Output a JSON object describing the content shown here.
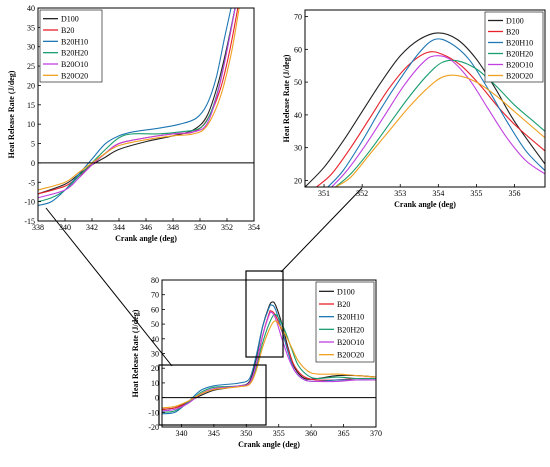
{
  "chart_data": [
    {
      "type": "line",
      "panel": "top-left zoom",
      "xlabel": "Crank angle (deg)",
      "ylabel": "Heat Release Rate (J/deg)",
      "xlim": [
        338,
        354
      ],
      "ylim": [
        -15,
        40
      ],
      "xticks": [
        338,
        340,
        342,
        344,
        346,
        348,
        350,
        352,
        354
      ],
      "yticks": [
        -15,
        -10,
        -5,
        0,
        5,
        10,
        15,
        20,
        25,
        30,
        35,
        40
      ],
      "zero_line": true,
      "legend_position": "top-left",
      "series": [
        {
          "name": "D100",
          "color": "#222222",
          "x": [
            338,
            340,
            341,
            342,
            343,
            344,
            346,
            348,
            349.5,
            350.5,
            351.3,
            352,
            352.6
          ],
          "y": [
            -8,
            -5.5,
            -3,
            -0.5,
            1.5,
            3.5,
            5.5,
            7,
            8.5,
            12,
            20,
            30,
            40
          ]
        },
        {
          "name": "B20",
          "color": "#e8202a",
          "x": [
            338,
            340,
            341,
            342,
            343,
            344,
            346,
            348,
            349.5,
            350.5,
            351.5,
            352.2,
            352.8
          ],
          "y": [
            -8,
            -6,
            -3.5,
            -0.5,
            2.5,
            5,
            6.5,
            7.5,
            8,
            11,
            19,
            29,
            40
          ]
        },
        {
          "name": "B20H10",
          "color": "#1f77b4",
          "x": [
            338,
            339,
            340,
            341,
            342,
            343,
            344,
            345,
            347,
            348.5,
            349.7,
            350.5,
            351.2,
            351.8,
            352.3
          ],
          "y": [
            -11,
            -10,
            -7,
            -3,
            1,
            5,
            7,
            8,
            9,
            10,
            11.5,
            15,
            22,
            32,
            40
          ]
        },
        {
          "name": "B20H20",
          "color": "#1a9e6e",
          "x": [
            338,
            339,
            340,
            341,
            342,
            343,
            344,
            345,
            347,
            348.5,
            350,
            350.8,
            351.5,
            352.1,
            352.6
          ],
          "y": [
            -10,
            -9,
            -7,
            -3.5,
            0,
            3.5,
            6.5,
            7.5,
            7.5,
            8,
            9,
            13,
            21,
            31,
            40
          ]
        },
        {
          "name": "B20O10",
          "color": "#c040e0",
          "x": [
            338,
            340,
            341,
            342,
            343,
            344,
            346,
            348,
            349.5,
            350.5,
            351.3,
            352,
            352.6
          ],
          "y": [
            -9,
            -7,
            -4,
            -0.5,
            2.5,
            5,
            6.5,
            7.5,
            8,
            10,
            18,
            29,
            40
          ]
        },
        {
          "name": "B20O20",
          "color": "#f0a020",
          "x": [
            338,
            340,
            341,
            342,
            343,
            344,
            346,
            348,
            349.5,
            350.5,
            351.5,
            352.3,
            352.9
          ],
          "y": [
            -7,
            -5,
            -2.5,
            0,
            2.5,
            4.5,
            6,
            7,
            7.5,
            9.5,
            17,
            28,
            40
          ]
        }
      ]
    },
    {
      "type": "line",
      "panel": "top-right zoom",
      "xlabel": "Crank angle (deg)",
      "ylabel": "Heat Release Rate (J/deg)",
      "xlim": [
        350.5,
        356.8
      ],
      "ylim": [
        18,
        72
      ],
      "xticks": [
        351,
        352,
        353,
        354,
        355,
        356
      ],
      "yticks": [
        20,
        30,
        40,
        50,
        60,
        70
      ],
      "legend_position": "top-right",
      "series": [
        {
          "name": "D100",
          "color": "#222222",
          "x": [
            350.5,
            351,
            351.5,
            352,
            352.5,
            353,
            353.5,
            354,
            354.5,
            355,
            355.5,
            356,
            356.8
          ],
          "y": [
            18,
            24,
            32,
            41,
            50,
            58,
            63,
            65,
            63,
            57,
            48,
            38,
            25
          ]
        },
        {
          "name": "B20",
          "color": "#e8202a",
          "x": [
            350.8,
            351.2,
            351.7,
            352.2,
            352.7,
            353.2,
            353.7,
            354.1,
            354.6,
            355.1,
            355.6,
            356.1,
            356.8
          ],
          "y": [
            18,
            22,
            30,
            39,
            48,
            55,
            59,
            58.5,
            55,
            49,
            42,
            36,
            29
          ]
        },
        {
          "name": "B20H10",
          "color": "#1f77b4",
          "x": [
            351.1,
            351.5,
            352,
            352.5,
            353,
            353.5,
            353.9,
            354.3,
            354.8,
            355.3,
            355.8,
            356.3,
            356.8
          ],
          "y": [
            18,
            23,
            32,
            42,
            51,
            59,
            63,
            62,
            57,
            48,
            38,
            29,
            23
          ]
        },
        {
          "name": "B20H20",
          "color": "#1a9e6e",
          "x": [
            351.3,
            351.7,
            352.2,
            352.7,
            353.2,
            353.7,
            354.1,
            354.5,
            355,
            355.5,
            356,
            356.5,
            356.8
          ],
          "y": [
            18,
            22,
            29,
            37,
            45,
            52,
            56,
            56.5,
            54,
            49,
            43,
            38,
            35
          ]
        },
        {
          "name": "B20O10",
          "color": "#c040e0",
          "x": [
            351.2,
            351.6,
            352.1,
            352.6,
            353.1,
            353.6,
            353.9,
            354.3,
            354.8,
            355.3,
            355.8,
            356.3,
            356.8
          ],
          "y": [
            18,
            23,
            31,
            40,
            49,
            56,
            58,
            57,
            51,
            42,
            33,
            26,
            22
          ]
        },
        {
          "name": "B20O20",
          "color": "#f0a020",
          "x": [
            351.3,
            351.7,
            352.2,
            352.7,
            353.2,
            353.7,
            354.1,
            354.5,
            355,
            355.5,
            356,
            356.5,
            356.8
          ],
          "y": [
            18,
            21,
            28,
            35,
            42,
            48,
            51.5,
            52,
            50,
            46,
            41,
            36,
            33
          ]
        }
      ]
    },
    {
      "type": "line",
      "panel": "bottom full view",
      "xlabel": "Crank angle (deg)",
      "ylabel": "Heat Release Rate (J/deg)",
      "xlim": [
        337,
        370
      ],
      "ylim": [
        -20,
        80
      ],
      "xticks": [
        340,
        345,
        350,
        355,
        360,
        365,
        370
      ],
      "yticks": [
        -20,
        -10,
        0,
        10,
        20,
        30,
        40,
        50,
        60,
        70,
        80
      ],
      "zero_line": true,
      "legend_position": "top-right",
      "series": [
        {
          "name": "D100",
          "color": "#222222",
          "x": [
            337,
            339,
            341,
            343,
            345,
            347,
            349,
            350.5,
            351.5,
            352.5,
            353.5,
            354,
            354.5,
            355.5,
            356.5,
            357.5,
            359,
            361,
            364,
            367,
            370
          ],
          "y": [
            -8,
            -7,
            -3,
            1.5,
            5,
            6.5,
            8,
            11,
            26,
            48,
            62,
            65,
            63,
            50,
            33,
            20,
            13,
            13,
            15,
            15,
            14
          ]
        },
        {
          "name": "B20",
          "color": "#e8202a",
          "x": [
            337,
            339,
            341,
            343,
            345,
            347,
            349,
            350.5,
            351.5,
            352.5,
            353.5,
            353.8,
            354.5,
            355.5,
            356.5,
            357.5,
            359,
            361,
            364,
            367,
            370
          ],
          "y": [
            -8,
            -7,
            -3.5,
            2.5,
            6,
            7,
            8,
            10,
            22,
            42,
            57,
            59,
            56,
            45,
            32,
            21,
            14,
            12,
            12,
            13,
            13
          ]
        },
        {
          "name": "B20H10",
          "color": "#1f77b4",
          "x": [
            337,
            339,
            341,
            343,
            345,
            347,
            349,
            350.5,
            351.5,
            352.5,
            353.5,
            353.9,
            354.5,
            355.5,
            356.5,
            357.5,
            359,
            361,
            364,
            367,
            370
          ],
          "y": [
            -11,
            -10,
            -3,
            5,
            8,
            9,
            10,
            13,
            28,
            48,
            61,
            63,
            60,
            46,
            30,
            18,
            12,
            11,
            12,
            12,
            12
          ]
        },
        {
          "name": "B20H20",
          "color": "#1a9e6e",
          "x": [
            337,
            339,
            341,
            343,
            345,
            347,
            349,
            350.5,
            351.5,
            352.5,
            353.5,
            354.3,
            355,
            356,
            357,
            358,
            359.5,
            361,
            364,
            367,
            370
          ],
          "y": [
            -10,
            -9,
            -3.5,
            3.5,
            7,
            7.5,
            8,
            10,
            20,
            37,
            50,
            56.5,
            54,
            45,
            33,
            22,
            15,
            13,
            14,
            13,
            13
          ]
        },
        {
          "name": "B20O10",
          "color": "#c040e0",
          "x": [
            337,
            339,
            341,
            343,
            345,
            347,
            349,
            350.5,
            351.5,
            352.5,
            353.5,
            353.9,
            354.5,
            355.5,
            356.5,
            357.5,
            359,
            361,
            364,
            367,
            370
          ],
          "y": [
            -9,
            -8,
            -4,
            2.5,
            6,
            7,
            8,
            10,
            22,
            42,
            56,
            58,
            54,
            40,
            27,
            18,
            12,
            11,
            11,
            12,
            12
          ]
        },
        {
          "name": "B20O20",
          "color": "#f0a020",
          "x": [
            337,
            339,
            341,
            343,
            345,
            347,
            349,
            350.5,
            351.5,
            352.5,
            353.5,
            354.3,
            355,
            356,
            357,
            358,
            359.5,
            361,
            364,
            367,
            370
          ],
          "y": [
            -7,
            -6,
            -2.5,
            2.5,
            5.5,
            6.5,
            7.5,
            9,
            18,
            34,
            46,
            52,
            50,
            43,
            34,
            25,
            18,
            16,
            16,
            15,
            14
          ]
        }
      ]
    }
  ]
}
